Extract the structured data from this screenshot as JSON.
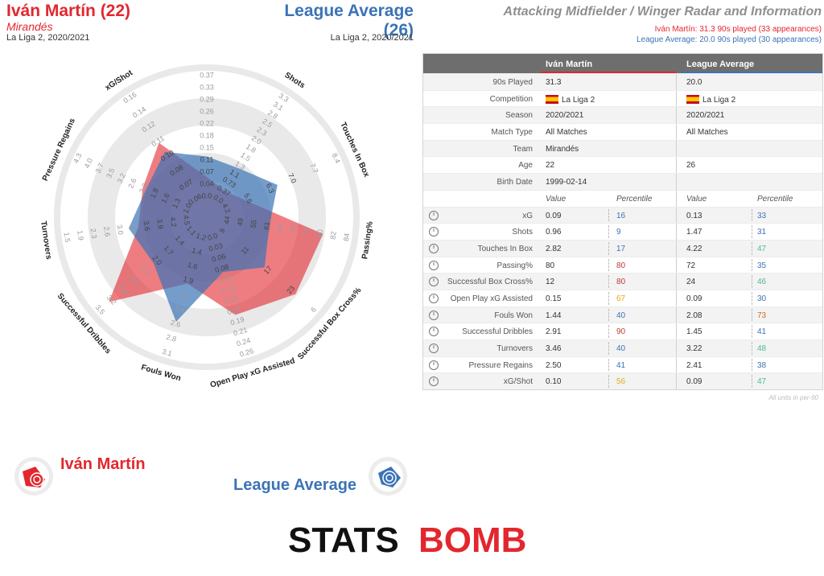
{
  "header": {
    "player_title": "Iván Martín (22)",
    "player_team": "Mirandés",
    "player_comp": "La Liga 2, 2020/2021",
    "league_title": "League Average (26)",
    "league_comp": "La Liga 2, 2020/2021",
    "radar_title": "Attacking Midfielder / Winger Radar and Information",
    "player_line": "Iván Martín: 31.3 90s played (33 appearances)",
    "league_line": "League Average: 20.0 90s played (30 appearances)"
  },
  "colors": {
    "player": "#e2272e",
    "league": "#3b73b7",
    "low": "#f0a30a",
    "high_red": "#c0392b"
  },
  "chart_data": {
    "type": "radar",
    "axes": [
      {
        "label": "xG",
        "ticks": [
          "0.0",
          "0.04",
          "0.07",
          "0.11",
          "0.15",
          "0.18",
          "0.22",
          "0.26",
          "0.29",
          "0.33",
          "0.37"
        ]
      },
      {
        "label": "Shots",
        "ticks": [
          "0.0",
          "0.37",
          "0.73",
          "1.1",
          "1.3",
          "1.5",
          "1.8",
          "2.0",
          "2.3",
          "2.5",
          "2.8",
          "3.1",
          "3.3"
        ]
      },
      {
        "label": "Touches In Box",
        "ticks": [
          "4.2",
          "5.6",
          "6.3",
          "7.0",
          "7.7",
          "8.4"
        ]
      },
      {
        "label": "Passing%",
        "ticks": [
          "44",
          "49",
          "55",
          "61",
          "67",
          "72",
          "77",
          "80",
          "82",
          "84"
        ]
      },
      {
        "label": "Successful Box Cross%",
        "ticks": [
          "9",
          "11",
          "17",
          "23",
          "6"
        ]
      },
      {
        "label": "Open Play xG Assisted",
        "ticks": [
          "0.0",
          "0.03",
          "0.06",
          "0.08",
          "0.10",
          "0.13",
          "0.15",
          "0.17",
          "0.19",
          "0.21",
          "0.24",
          "0.26"
        ]
      },
      {
        "label": "Fouls Won",
        "ticks": [
          "1.2",
          "1.4",
          "1.6",
          "1.9",
          "2.1",
          "2.4",
          "2.6",
          "2.8",
          "3.1"
        ]
      },
      {
        "label": "Successful Dribbles",
        "ticks": [
          "1.1",
          "1.4",
          "1.7",
          "2.0",
          "2.3",
          "2.6",
          "2.9",
          "3.2",
          "3.5"
        ]
      },
      {
        "label": "Turnovers",
        "ticks": [
          "4.5",
          "4.2",
          "3.9",
          "3.6",
          "3.3",
          "3.0",
          "2.6",
          "2.3",
          "1.9",
          "1.5"
        ]
      },
      {
        "label": "Pressure Regains",
        "ticks": [
          "1.0",
          "1.3",
          "1.6",
          "1.9",
          "2.3",
          "2.6",
          "3.2",
          "3.5",
          "3.7",
          "4.0",
          "4.3"
        ]
      },
      {
        "label": "xG/Shot",
        "ticks": [
          "0.06",
          "0.07",
          "0.08",
          "0.10",
          "0.11",
          "0.12",
          "0.14",
          "0.16"
        ]
      }
    ],
    "series": [
      {
        "name": "Iván Martín",
        "values": [
          0.16,
          0.09,
          0.17,
          0.8,
          0.8,
          0.67,
          0.4,
          0.9,
          0.4,
          0.41,
          0.56
        ]
      },
      {
        "name": "League Average",
        "values": [
          0.33,
          0.31,
          0.47,
          0.35,
          0.46,
          0.3,
          0.73,
          0.41,
          0.48,
          0.38,
          0.47
        ]
      }
    ]
  },
  "legend": {
    "player": "Iván Martín",
    "league": "League Average"
  },
  "table": {
    "col_player": "Iván Martín",
    "col_league": "League Average",
    "info_rows": [
      {
        "label": "90s Played",
        "player": "31.3",
        "league": "20.0"
      },
      {
        "label": "Competition",
        "player": "La Liga 2",
        "league": "La Liga 2",
        "flag": true
      },
      {
        "label": "Season",
        "player": "2020/2021",
        "league": "2020/2021"
      },
      {
        "label": "Match Type",
        "player": "All Matches",
        "league": "All Matches"
      },
      {
        "label": "Team",
        "player": "Mirandés",
        "league": ""
      },
      {
        "label": "Age",
        "player": "22",
        "league": "26"
      },
      {
        "label": "Birth Date",
        "player": "1999-02-14",
        "league": ""
      }
    ],
    "sub_headers": {
      "value": "Value",
      "percentile": "Percentile"
    },
    "stat_rows": [
      {
        "label": "xG",
        "pv": "0.09",
        "pp": "16",
        "lv": "0.13",
        "lp": "33",
        "ppc": "#3b73b7",
        "lpc": "#3b73b7"
      },
      {
        "label": "Shots",
        "pv": "0.96",
        "pp": "9",
        "lv": "1.47",
        "lp": "31",
        "ppc": "#3b73b7",
        "lpc": "#3b73b7"
      },
      {
        "label": "Touches In Box",
        "pv": "2.82",
        "pp": "17",
        "lv": "4.22",
        "lp": "47",
        "ppc": "#3b73b7",
        "lpc": "#4db89a"
      },
      {
        "label": "Passing%",
        "pv": "80",
        "pp": "80",
        "lv": "72",
        "lp": "35",
        "ppc": "#c0392b",
        "lpc": "#3b73b7"
      },
      {
        "label": "Successful Box Cross%",
        "pv": "12",
        "pp": "80",
        "lv": "24",
        "lp": "46",
        "ppc": "#c0392b",
        "lpc": "#4db89a"
      },
      {
        "label": "Open Play xG Assisted",
        "pv": "0.15",
        "pp": "67",
        "lv": "0.09",
        "lp": "30",
        "ppc": "#f0a30a",
        "lpc": "#3b73b7"
      },
      {
        "label": "Fouls Won",
        "pv": "1.44",
        "pp": "40",
        "lv": "2.08",
        "lp": "73",
        "ppc": "#3b73b7",
        "lpc": "#d4691e"
      },
      {
        "label": "Successful Dribbles",
        "pv": "2.91",
        "pp": "90",
        "lv": "1.45",
        "lp": "41",
        "ppc": "#c0392b",
        "lpc": "#3b73b7"
      },
      {
        "label": "Turnovers",
        "pv": "3.46",
        "pp": "40",
        "lv": "3.22",
        "lp": "48",
        "ppc": "#3b73b7",
        "lpc": "#4db89a"
      },
      {
        "label": "Pressure Regains",
        "pv": "2.50",
        "pp": "41",
        "lv": "2.41",
        "lp": "38",
        "ppc": "#3b73b7",
        "lpc": "#3b73b7"
      },
      {
        "label": "xG/Shot",
        "pv": "0.10",
        "pp": "56",
        "lv": "0.09",
        "lp": "47",
        "ppc": "#e0b020",
        "lpc": "#4db89a"
      }
    ],
    "footnote": "All units in per-90"
  },
  "logo": {
    "text_a": "STATS",
    "text_b": "BOMB"
  }
}
